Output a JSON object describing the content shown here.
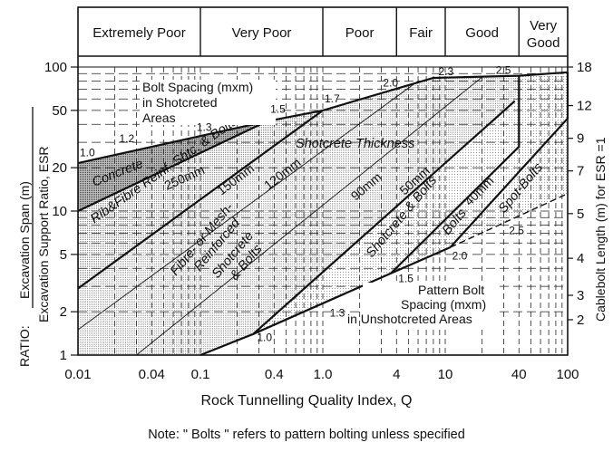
{
  "chart_data": {
    "type": "line",
    "title": "",
    "xlabel": "Rock Tunnelling Quality Index, Q",
    "ylabel_top": "Excavation Span (m)",
    "ylabel_bottom": "Excavation Support Ratio, ESR",
    "ylabel_prefix": "RATIO:",
    "y2label": "Cablebolt Length (m) for ESR =1",
    "note": "Note: \" Bolts \" refers to pattern bolting unless specified",
    "xscale": "log",
    "yscale": "log",
    "xlim": [
      0.01,
      100
    ],
    "ylim": [
      1,
      100
    ],
    "xticks": [
      0.01,
      0.04,
      0.1,
      0.4,
      1,
      4,
      10,
      40,
      100
    ],
    "xtick_labels": [
      "0.01",
      "0.04",
      "0.1",
      "0.4",
      "1.0",
      "4",
      "10",
      "40",
      "100"
    ],
    "yticks": [
      100,
      50,
      20,
      10,
      5,
      2,
      1
    ],
    "ytick_labels": [
      "100",
      "50",
      "20",
      "10",
      "5",
      "2",
      "1"
    ],
    "y2ticks": [
      {
        "label": "18",
        "span": 100
      },
      {
        "label": "12",
        "span": 54
      },
      {
        "label": "9",
        "span": 32
      },
      {
        "label": "7",
        "span": 19
      },
      {
        "label": "5",
        "span": 9.6
      },
      {
        "label": "4",
        "span": 4.7
      },
      {
        "label": "3",
        "span": 2.6
      },
      {
        "label": "2",
        "span": 1.76
      }
    ],
    "rock_classes": [
      {
        "label": "Extremely Poor",
        "q_from": 0.01,
        "q_to": 0.1
      },
      {
        "label": "Very Poor",
        "q_from": 0.1,
        "q_to": 1
      },
      {
        "label": "Poor",
        "q_from": 1,
        "q_to": 4
      },
      {
        "label": "Fair",
        "q_from": 4,
        "q_to": 10
      },
      {
        "label": "Good",
        "q_from": 10,
        "q_to": 40
      },
      {
        "label": "Very",
        "label2": "Good",
        "q_from": 40,
        "q_to": 100
      }
    ],
    "series": [
      {
        "name": "upper-boundary",
        "style": "thick",
        "points": [
          [
            0.01,
            21.5
          ],
          [
            0.35,
            42
          ],
          [
            1,
            50
          ],
          [
            8,
            84
          ],
          [
            40,
            87
          ],
          [
            100,
            92
          ]
        ]
      },
      {
        "name": "concrete-250mm-boundary",
        "style": "thick",
        "points": [
          [
            0.01,
            10
          ],
          [
            0.35,
            42
          ]
        ]
      },
      {
        "name": "150mm-boundary",
        "style": "thick",
        "points": [
          [
            0.01,
            2.9
          ],
          [
            1,
            50
          ]
        ]
      },
      {
        "name": "120mm-line",
        "style": "thin",
        "points": [
          [
            0.01,
            1.5
          ],
          [
            6,
            80
          ]
        ]
      },
      {
        "name": "90mm-line",
        "style": "thin",
        "points": [
          [
            0.03,
            1
          ],
          [
            20,
            85
          ]
        ]
      },
      {
        "name": "50mm-boundary",
        "style": "thick",
        "points": [
          [
            0.27,
            1.4
          ],
          [
            37,
            58
          ]
        ]
      },
      {
        "name": "40mm-boundary",
        "style": "thick",
        "points": [
          [
            3.6,
            3.7
          ],
          [
            40,
            28
          ],
          [
            40,
            87
          ]
        ]
      },
      {
        "name": "spot-bolts-boundary",
        "style": "thick",
        "points": [
          [
            11,
            5.6
          ],
          [
            100,
            44
          ],
          [
            100,
            92
          ]
        ]
      },
      {
        "name": "lower-boundary",
        "style": "thick",
        "points": [
          [
            0.1,
            1
          ],
          [
            0.27,
            1.4
          ],
          [
            3.6,
            3.7
          ],
          [
            11,
            5.6
          ]
        ]
      },
      {
        "name": "unshotcreted-2.5-line",
        "style": "dashed",
        "points": [
          [
            11,
            5.6
          ],
          [
            100,
            13.2
          ]
        ]
      }
    ],
    "region_labels": {
      "concrete": "Concrete",
      "t250": "250mm",
      "rib": "Rib&Fibre Reinf. Shtc. & Bolts",
      "t150": "150mm",
      "t120": "120mm",
      "thickness": "Shotcrete Thickness",
      "t90": "90mm",
      "t50": "50mm",
      "t40": "40mm",
      "fibre1": "Fibre- or Mesh-",
      "fibre2": "Reinforced",
      "fibre3": "Shotcrete",
      "fibre4": "& Bolts",
      "shotbolts": "Shotcrete & Bolts",
      "bolts": "Bolts",
      "spot": "Spot-Bolts"
    },
    "annotations": {
      "shotcreted_title": [
        "Bolt Spacing (mxm)",
        "in Shotcreted",
        "Areas"
      ],
      "unshotcreted_title": [
        "Pattern Bolt",
        "Spacing (mxm)",
        "in Unshotcreted Areas"
      ],
      "shotcreted_spacing": [
        {
          "label": "1.0",
          "q": 0.01,
          "span": 24
        },
        {
          "label": "1.2",
          "q": 0.021,
          "span": 30
        },
        {
          "label": "1.3",
          "q": 0.09,
          "span": 36
        },
        {
          "label": "1.5",
          "q": 0.36,
          "span": 48
        },
        {
          "label": "1.7",
          "q": 1,
          "span": 57
        },
        {
          "label": "2.0",
          "q": 3.0,
          "span": 73
        },
        {
          "label": "2.3",
          "q": 8.5,
          "span": 88
        },
        {
          "label": "2.5",
          "q": 25,
          "span": 90
        }
      ],
      "unshotcreted_spacing": [
        {
          "label": "1.0",
          "q": 0.28,
          "span": 1.25
        },
        {
          "label": "1.3",
          "q": 1.1,
          "span": 1.85
        },
        {
          "label": "1.5",
          "q": 4.0,
          "span": 3.2
        },
        {
          "label": "2.0",
          "q": 11,
          "span": 4.6
        },
        {
          "label": "2.5",
          "q": 32,
          "span": 6.9
        }
      ]
    }
  }
}
